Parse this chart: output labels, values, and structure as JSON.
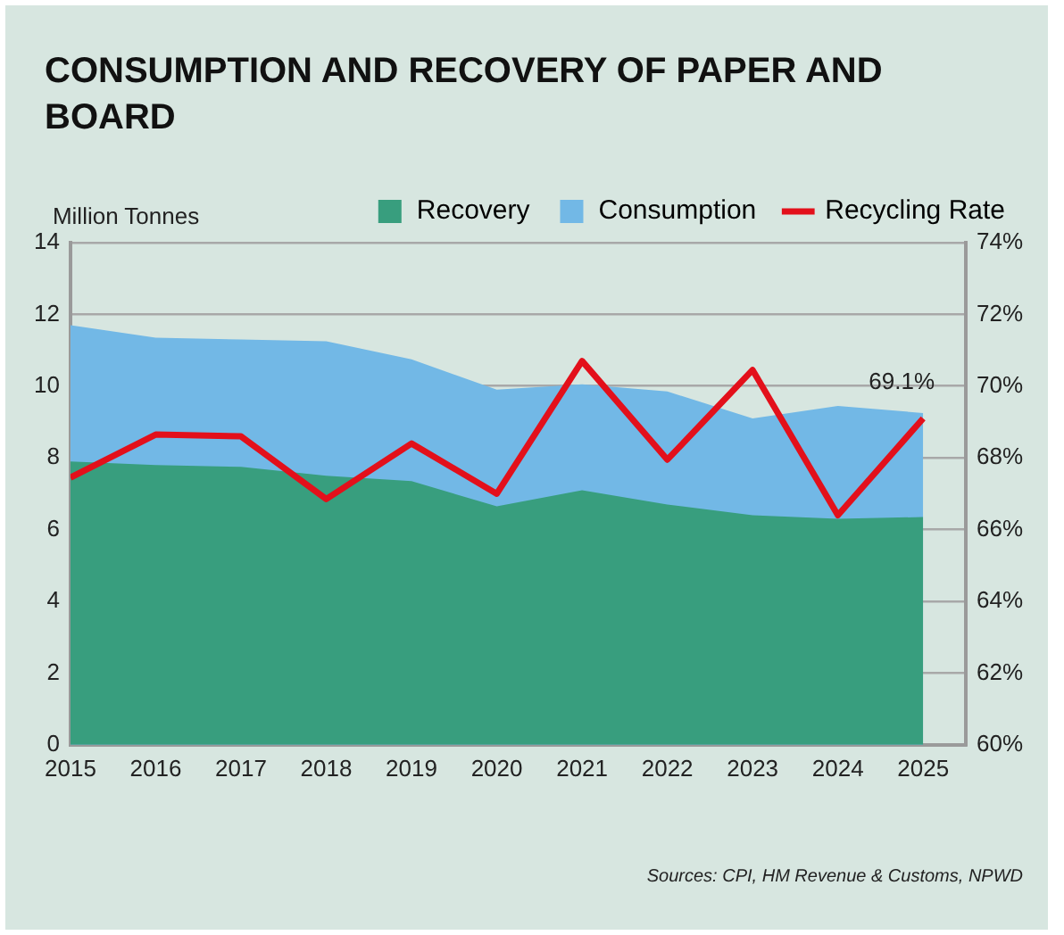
{
  "chart_data": {
    "type": "area",
    "title": "CONSUMPTION AND RECOVERY OF PAPER AND BOARD",
    "ylabel": "Million Tonnes",
    "annotations": [
      "Sources: CPI, HM Revenue & Customs, NPWD"
    ],
    "x": [
      2015,
      2016,
      2017,
      2018,
      2019,
      2020,
      2021,
      2022,
      2023,
      2024,
      2025
    ],
    "xlim": [
      2015,
      2025.5
    ],
    "xticks": [
      2015,
      2016,
      2017,
      2018,
      2019,
      2020,
      2021,
      2022,
      2023,
      2024,
      2025
    ],
    "ylim": [
      0,
      14
    ],
    "yticks": [
      0,
      2,
      4,
      6,
      8,
      10,
      12,
      14
    ],
    "y2lim": [
      60,
      74
    ],
    "y2ticks": [
      {
        "value": 60,
        "label": "60%"
      },
      {
        "value": 62,
        "label": "62%"
      },
      {
        "value": 64,
        "label": "64%"
      },
      {
        "value": 66,
        "label": "66%"
      },
      {
        "value": 68,
        "label": "68%"
      },
      {
        "value": 70,
        "label": "70%"
      },
      {
        "value": 72,
        "label": "72%"
      },
      {
        "value": 74,
        "label": "74%"
      }
    ],
    "series": [
      {
        "name": "Recovery",
        "color": "#389e7e",
        "values": [
          7.9,
          7.8,
          7.75,
          7.5,
          7.35,
          6.65,
          7.1,
          6.7,
          6.4,
          6.3,
          6.35
        ]
      },
      {
        "name": "Consumption",
        "color": "#72b8e6",
        "values": [
          11.7,
          11.35,
          11.3,
          11.25,
          10.75,
          9.9,
          10.05,
          9.85,
          9.1,
          9.45,
          9.25
        ]
      },
      {
        "name": "Recycling Rate",
        "type": "line",
        "axis": "y2",
        "color": "#e3101b",
        "values": [
          67.45,
          68.65,
          68.6,
          66.85,
          68.4,
          67.0,
          70.7,
          67.95,
          70.45,
          66.4,
          69.1
        ],
        "value_labels": [
          null,
          null,
          null,
          null,
          null,
          null,
          null,
          null,
          null,
          null,
          "69.1%"
        ]
      }
    ],
    "grid": "y",
    "legend": "top right",
    "marker": "none"
  }
}
